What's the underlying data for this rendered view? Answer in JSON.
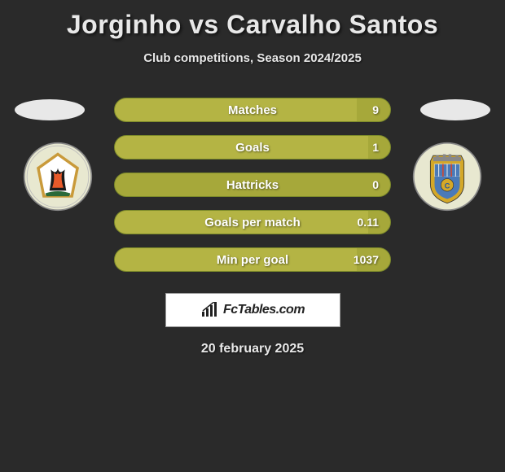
{
  "title": "Jorginho vs Carvalho Santos",
  "subtitle": "Club competitions, Season 2024/2025",
  "date": "20 february 2025",
  "logo_text": "FcTables.com",
  "colors": {
    "bar_bg": "#a6a83a",
    "bar_fill": "#b4b444",
    "bar_border": "#7c8a2a",
    "background": "#2a2a2a",
    "text": "#e8e8e8"
  },
  "stats": [
    {
      "label": "Matches",
      "value": "9",
      "fill_pct": 88
    },
    {
      "label": "Goals",
      "value": "1",
      "fill_pct": 92
    },
    {
      "label": "Hattricks",
      "value": "0",
      "fill_pct": 0
    },
    {
      "label": "Goals per match",
      "value": "0.11",
      "fill_pct": 92
    },
    {
      "label": "Min per goal",
      "value": "1037",
      "fill_pct": 88
    }
  ]
}
